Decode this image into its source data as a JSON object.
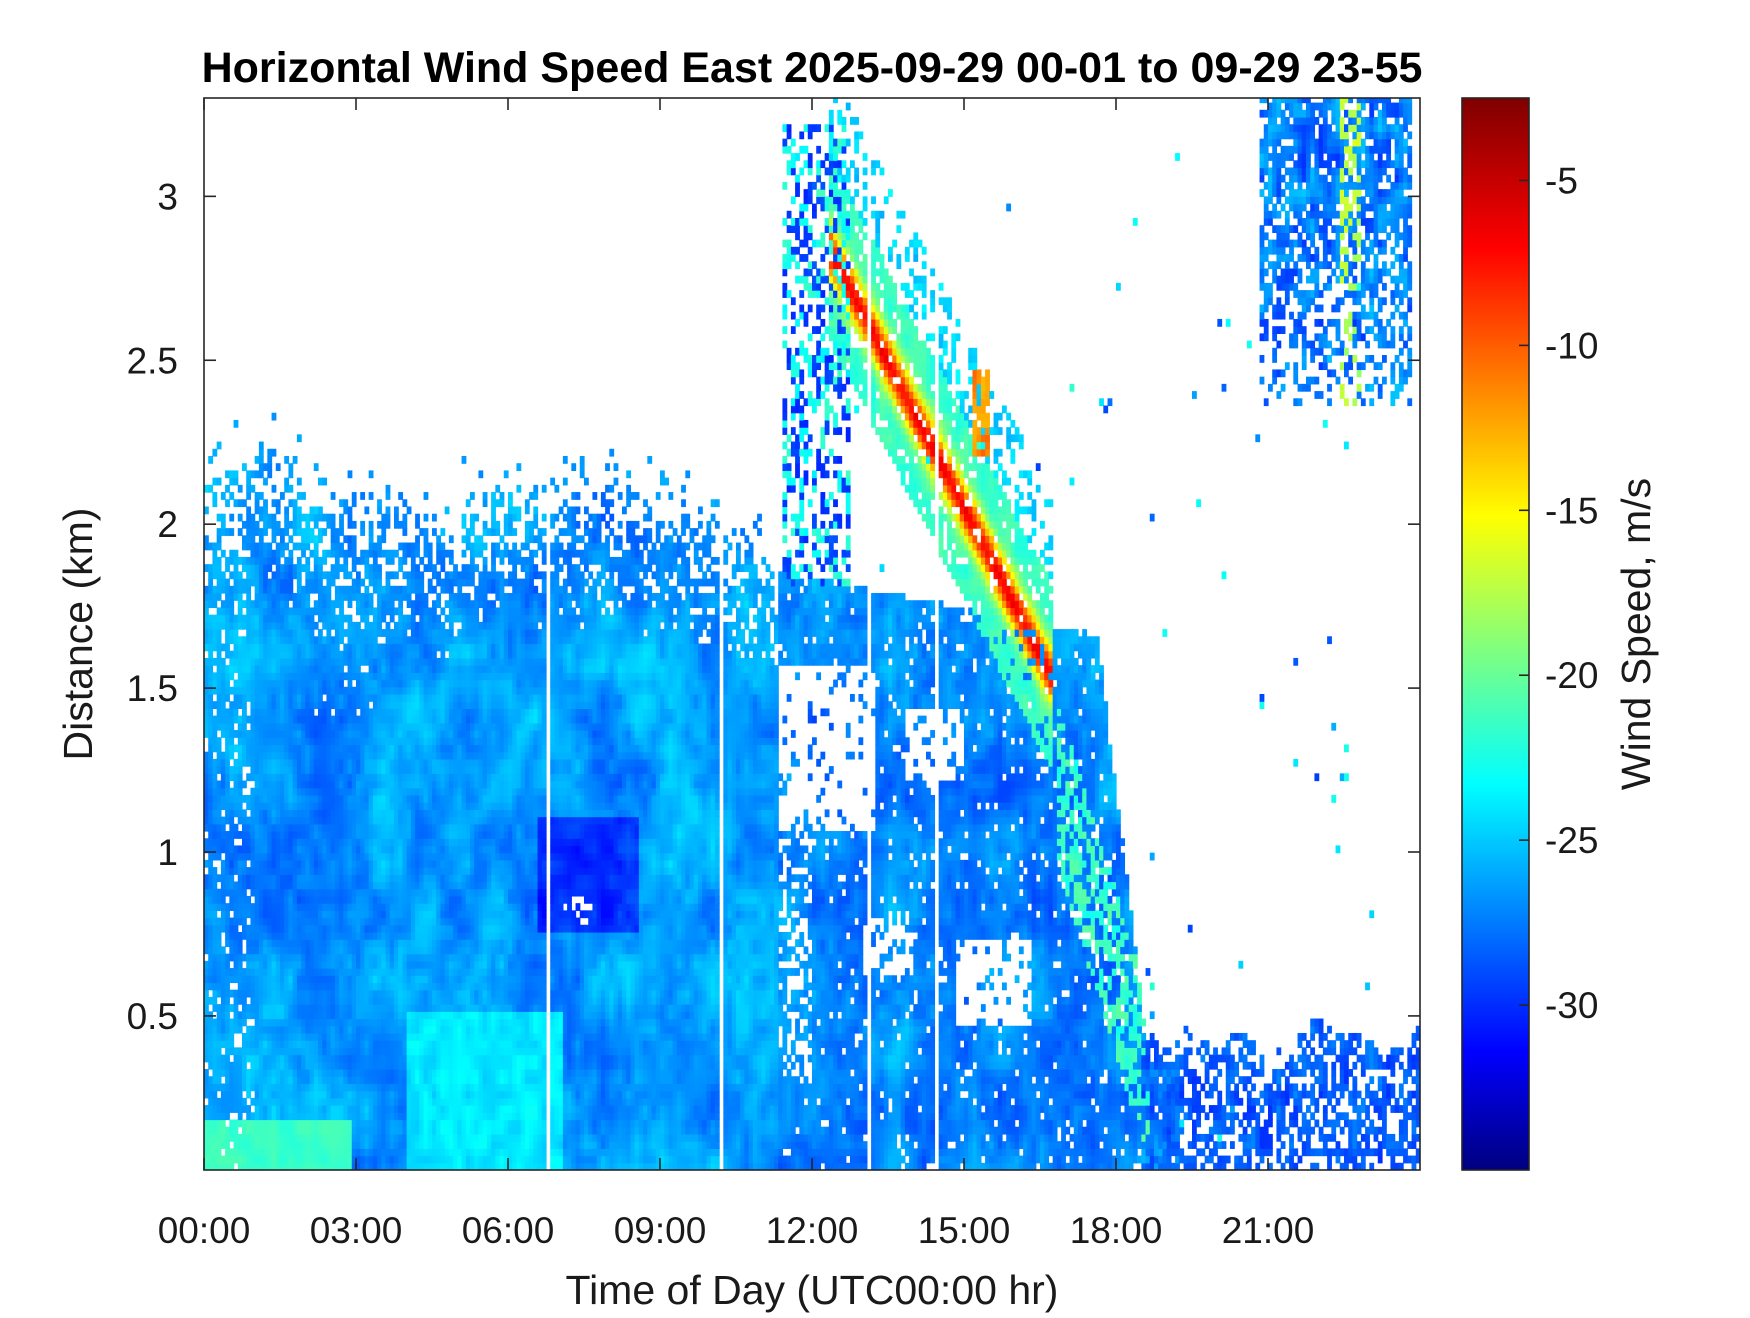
{
  "chart_data": {
    "type": "heatmap",
    "title": "Horizontal Wind Speed East 2025-09-29 00-01 to 09-29 23-55",
    "xlabel": "Time of Day (UTC00:00 hr)",
    "ylabel": "Distance (km)",
    "colorbar_label": "Wind Speed, m/s",
    "colormap": "jet",
    "xlim_hours": [
      0,
      24
    ],
    "ylim_km": [
      0.03,
      3.3
    ],
    "clim": [
      -35,
      -2.5
    ],
    "x_ticks": [
      {
        "value": 0,
        "label": "00:00"
      },
      {
        "value": 3,
        "label": "03:00"
      },
      {
        "value": 6,
        "label": "06:00"
      },
      {
        "value": 9,
        "label": "09:00"
      },
      {
        "value": 12,
        "label": "12:00"
      },
      {
        "value": 15,
        "label": "15:00"
      },
      {
        "value": 18,
        "label": "18:00"
      },
      {
        "value": 21,
        "label": "21:00"
      }
    ],
    "y_ticks": [
      {
        "value": 0.5,
        "label": "0.5"
      },
      {
        "value": 1,
        "label": "1"
      },
      {
        "value": 1.5,
        "label": "1.5"
      },
      {
        "value": 2,
        "label": "2"
      },
      {
        "value": 2.5,
        "label": "2.5"
      },
      {
        "value": 3,
        "label": "3"
      }
    ],
    "colorbar_ticks": [
      {
        "value": -5,
        "label": "-5"
      },
      {
        "value": -10,
        "label": "-10"
      },
      {
        "value": -15,
        "label": "-15"
      },
      {
        "value": -20,
        "label": "-20"
      },
      {
        "value": -25,
        "label": "-25"
      },
      {
        "value": -30,
        "label": "-30"
      }
    ],
    "regions": [
      {
        "name": "boundary-layer-background",
        "t": [
          0,
          11.2
        ],
        "d": [
          0.03,
          2.1
        ],
        "speed": -26
      },
      {
        "name": "surface-slow-flow",
        "t": [
          0,
          2.9
        ],
        "d": [
          0.03,
          0.17
        ],
        "speed": -21
      },
      {
        "name": "near-surface-afternoon",
        "t": [
          11.2,
          18.5
        ],
        "d": [
          0.03,
          1.2
        ],
        "speed": -26
      },
      {
        "name": "mid-level-afternoon",
        "t": [
          12.2,
          17.7
        ],
        "d": [
          1.2,
          1.85
        ],
        "speed": -26
      },
      {
        "name": "descending-slow-band",
        "t": [
          12.3,
          16.6
        ],
        "d": [
          1.4,
          2.85
        ],
        "speed": -9
      },
      {
        "name": "late-evening-surface",
        "t": [
          18.5,
          24
        ],
        "d": [
          0.03,
          0.5
        ],
        "speed": -27
      },
      {
        "name": "upper-cloud-returns",
        "t": [
          20.8,
          23.8
        ],
        "d": [
          2.3,
          3.3
        ],
        "speed": -24
      }
    ]
  }
}
